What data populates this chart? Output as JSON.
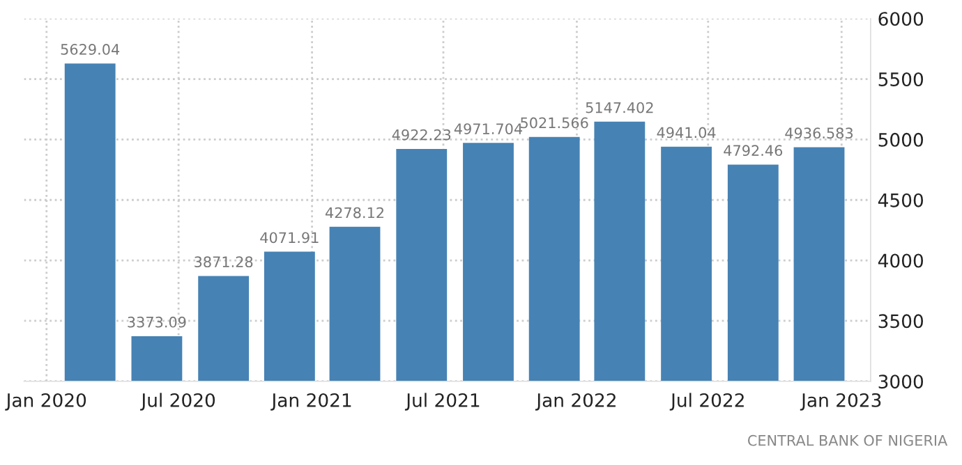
{
  "chart_data": {
    "type": "bar",
    "x": [
      "2020-03",
      "2020-06",
      "2020-09",
      "2020-12",
      "2021-03",
      "2021-06",
      "2021-09",
      "2021-12",
      "2022-03",
      "2022-06",
      "2022-09",
      "2022-12"
    ],
    "values": [
      5629.04,
      3373.09,
      3871.28,
      4071.91,
      4278.12,
      4922.23,
      4971.704,
      5021.566,
      5147.402,
      4941.04,
      4792.46,
      4936.583
    ],
    "color": "#4682b4",
    "data_labels": true,
    "xlim": [
      "2019-12-01",
      "2023-02-10"
    ],
    "xticks": [
      {
        "value": "2020-01",
        "label": "Jan 2020"
      },
      {
        "value": "2020-07",
        "label": "Jul 2020"
      },
      {
        "value": "2021-01",
        "label": "Jan 2021"
      },
      {
        "value": "2021-07",
        "label": "Jul 2021"
      },
      {
        "value": "2022-01",
        "label": "Jan 2022"
      },
      {
        "value": "2022-07",
        "label": "Jul 2022"
      },
      {
        "value": "2023-01",
        "label": "Jan 2023"
      }
    ],
    "ylim": [
      3000,
      6000
    ],
    "yticks": [
      3000,
      3500,
      4000,
      4500,
      5000,
      5500,
      6000
    ],
    "grid": true,
    "annotations": [
      "CENTRAL BANK OF NIGERIA"
    ]
  }
}
